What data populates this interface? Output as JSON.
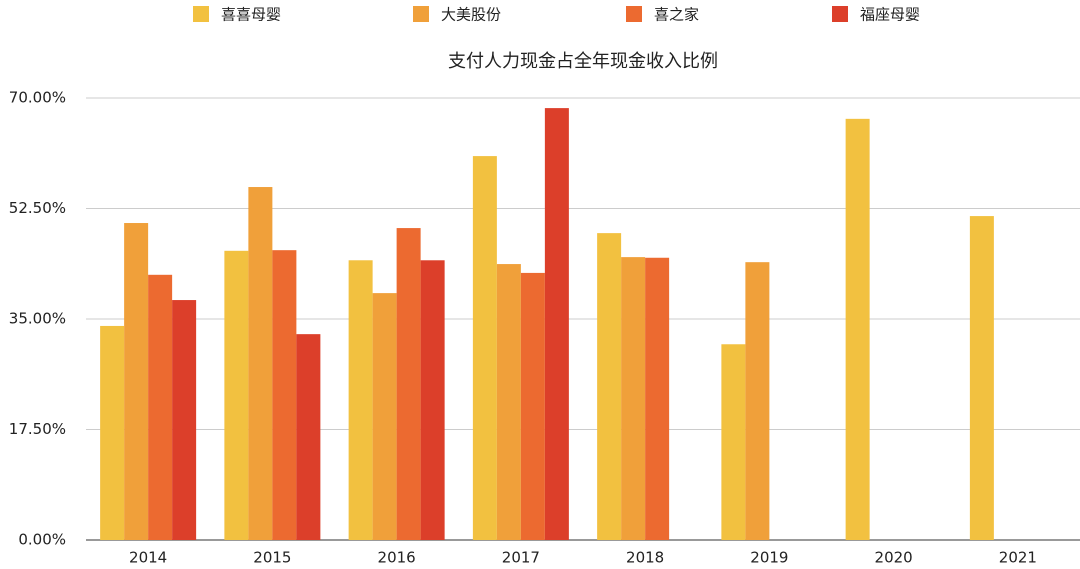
{
  "chart_data": {
    "type": "bar",
    "title": "支付人力现金占全年现金收入比例",
    "categories": [
      "2014",
      "2015",
      "2016",
      "2017",
      "2018",
      "2019",
      "2020",
      "2021"
    ],
    "series": [
      {
        "name": "喜喜母婴",
        "color": "#f2c140",
        "values": [
          33.9,
          45.8,
          44.3,
          60.8,
          48.6,
          31.0,
          66.7,
          51.3
        ]
      },
      {
        "name": "大美股份",
        "color": "#f0a03a",
        "values": [
          50.2,
          55.9,
          39.1,
          43.7,
          44.8,
          44.0,
          null,
          null
        ]
      },
      {
        "name": "喜之家",
        "color": "#ec6a30",
        "values": [
          42.0,
          45.9,
          49.4,
          42.3,
          44.7,
          null,
          null,
          null
        ]
      },
      {
        "name": "福座母婴",
        "color": "#dc3f2a",
        "values": [
          38.0,
          32.6,
          44.3,
          68.4,
          null,
          null,
          null,
          null
        ]
      }
    ],
    "ylim": [
      0,
      70
    ],
    "yticks": [
      {
        "value": 0,
        "label": "0.00%"
      },
      {
        "value": 17.5,
        "label": "17.50%"
      },
      {
        "value": 35,
        "label": "35.00%"
      },
      {
        "value": 52.5,
        "label": "52.50%"
      },
      {
        "value": 70,
        "label": "70.00%"
      }
    ],
    "grid": true,
    "legend": "top"
  }
}
